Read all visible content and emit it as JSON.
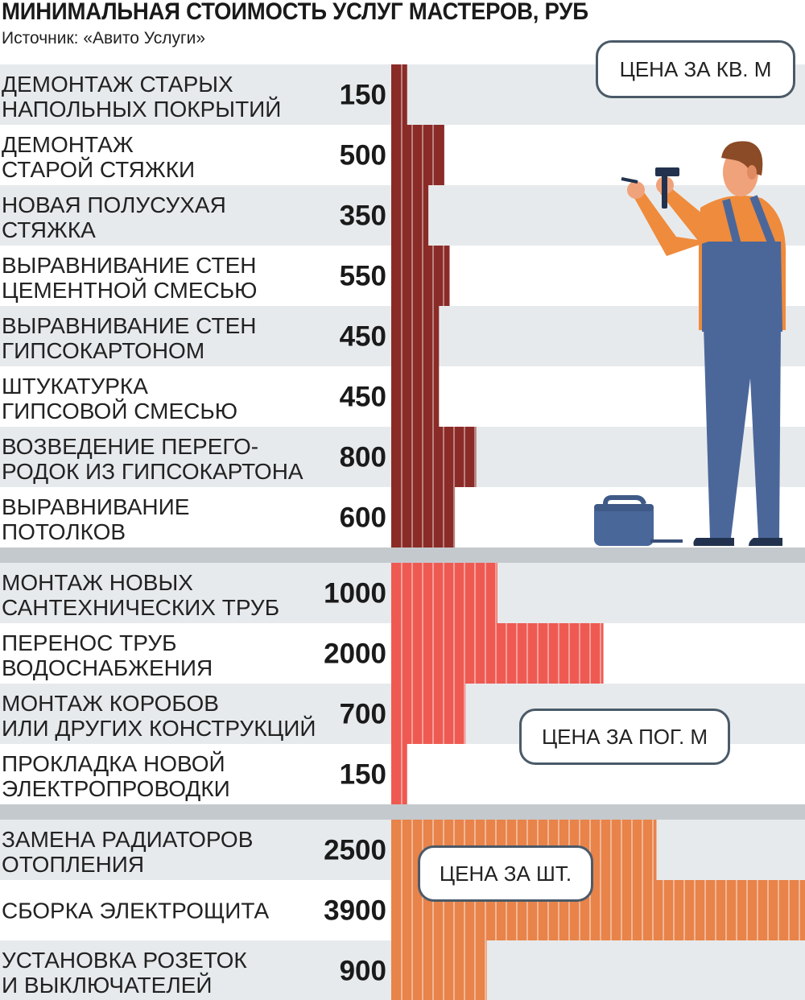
{
  "title": "МИНИМАЛЬНАЯ СТОИМОСТЬ УСЛУГ МАСТЕРОВ, РУБ",
  "source": "Источник: «Авито Услуги»",
  "units": {
    "sqm": "ЦЕНА ЗА КВ. М",
    "linear": "ЦЕНА ЗА ПОГ. М",
    "piece": "ЦЕНА ЗА ШТ."
  },
  "colors": {
    "group_sqm": "#8b2b27",
    "group_linear": "#ee5a52",
    "group_piece": "#e8834a",
    "row_shaded": "#e7eaec",
    "separator": "#c4c9cd"
  },
  "chart_data": {
    "type": "bar",
    "orientation": "horizontal",
    "title": "МИНИМАЛЬНАЯ СТОИМОСТЬ УСЛУГ МАСТЕРОВ, РУБ",
    "xlabel": "",
    "ylabel": "",
    "xlim": [
      0,
      3900
    ],
    "grid": false,
    "groups": [
      {
        "unit": "ЦЕНА ЗА КВ. М",
        "color": "#8b2b27",
        "items": [
          {
            "label": [
              "ДЕМОНТАЖ СТАРЫХ",
              "НАПОЛЬНЫХ ПОКРЫТИЙ"
            ],
            "value": 150,
            "value_label": "150"
          },
          {
            "label": [
              "ДЕМОНТАЖ",
              "СТАРОЙ СТЯЖКИ"
            ],
            "value": 500,
            "value_label": "500"
          },
          {
            "label": [
              "НОВАЯ ПОЛУСУХАЯ",
              "СТЯЖКА"
            ],
            "value": 350,
            "value_label": "350"
          },
          {
            "label": [
              "ВЫРАВНИВАНИЕ СТЕН",
              "ЦЕМЕНТНОЙ СМЕСЬЮ"
            ],
            "value": 550,
            "value_label": "550"
          },
          {
            "label": [
              "ВЫРАВНИВАНИЕ СТЕН",
              "ГИПСОКАРТОНОМ"
            ],
            "value": 450,
            "value_label": "450"
          },
          {
            "label": [
              "ШТУКАТУРКА",
              "ГИПСОВОЙ СМЕСЬЮ"
            ],
            "value": 450,
            "value_label": "450"
          },
          {
            "label": [
              "ВОЗВЕДЕНИЕ ПЕРЕГО-",
              "РОДОК ИЗ ГИПСОКАРТОНА"
            ],
            "value": 800,
            "value_label": "800"
          },
          {
            "label": [
              "ВЫРАВНИВАНИЕ",
              "ПОТОЛКОВ"
            ],
            "value": 600,
            "value_label": "600"
          }
        ]
      },
      {
        "unit": "ЦЕНА ЗА ПОГ. М",
        "color": "#ee5a52",
        "items": [
          {
            "label": [
              "МОНТАЖ НОВЫХ",
              "САНТЕХНИЧЕСКИХ ТРУБ"
            ],
            "value": 1000,
            "value_label": "1000"
          },
          {
            "label": [
              "ПЕРЕНОС ТРУБ",
              "ВОДОСНАБЖЕНИЯ"
            ],
            "value": 2000,
            "value_label": "2000"
          },
          {
            "label": [
              "МОНТАЖ КОРОБОВ",
              "ИЛИ ДРУГИХ КОНСТРУКЦИЙ"
            ],
            "value": 700,
            "value_label": "700"
          },
          {
            "label": [
              "ПРОКЛАДКА НОВОЙ",
              "ЭЛЕКТРОПРОВОДКИ"
            ],
            "value": 150,
            "value_label": "150"
          }
        ]
      },
      {
        "unit": "ЦЕНА ЗА ШТ.",
        "color": "#e8834a",
        "items": [
          {
            "label": [
              "ЗАМЕНА РАДИАТОРОВ",
              "ОТОПЛЕНИЯ"
            ],
            "value": 2500,
            "value_label": "2500"
          },
          {
            "label": [
              "СБОРКА ЭЛЕКТРОЩИТА"
            ],
            "value": 3900,
            "value_label": "3900"
          },
          {
            "label": [
              "УСТАНОВКА РОЗЕТОК",
              "И ВЫКЛЮЧАТЕЛЕЙ"
            ],
            "value": 900,
            "value_label": "900"
          }
        ]
      }
    ]
  }
}
